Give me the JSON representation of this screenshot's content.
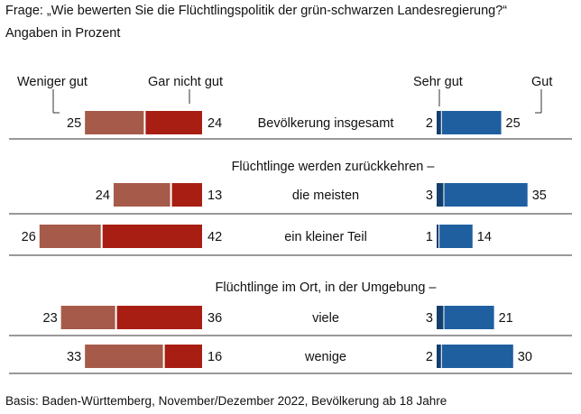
{
  "title": "Frage: „Wie bewerten Sie die Flüchtlingspolitik der grün-schwarzen Landesregierung?“",
  "subtitle": "Angaben in Prozent",
  "footnote": "Basis: Baden-Württemberg, November/Dezember 2022, Bevölkerung ab 18 Jahre",
  "colors": {
    "weniger_gut": "#a65a4a",
    "gar_nicht_gut": "#a81e12",
    "sehr_gut": "#123f6e",
    "gut": "#1f5fa0"
  },
  "chart_data": {
    "type": "bar",
    "legend": [
      "Weniger gut",
      "Gar nicht gut",
      "Sehr gut",
      "Gut"
    ],
    "section_labels": [
      "Flüchtlinge werden zurückkehren –",
      "Flüchtlinge im Ort, in der Umgebung –"
    ],
    "categories": [
      "Bevölkerung insgesamt",
      "die meisten",
      "ein kleiner Teil",
      "viele",
      "wenige"
    ],
    "series": [
      {
        "name": "Weniger gut",
        "values": [
          25,
          24,
          26,
          23,
          33
        ]
      },
      {
        "name": "Gar nicht gut",
        "values": [
          24,
          13,
          42,
          36,
          16
        ]
      },
      {
        "name": "Sehr gut",
        "values": [
          2,
          3,
          1,
          3,
          2
        ]
      },
      {
        "name": "Gut",
        "values": [
          25,
          35,
          14,
          21,
          30
        ]
      }
    ]
  }
}
